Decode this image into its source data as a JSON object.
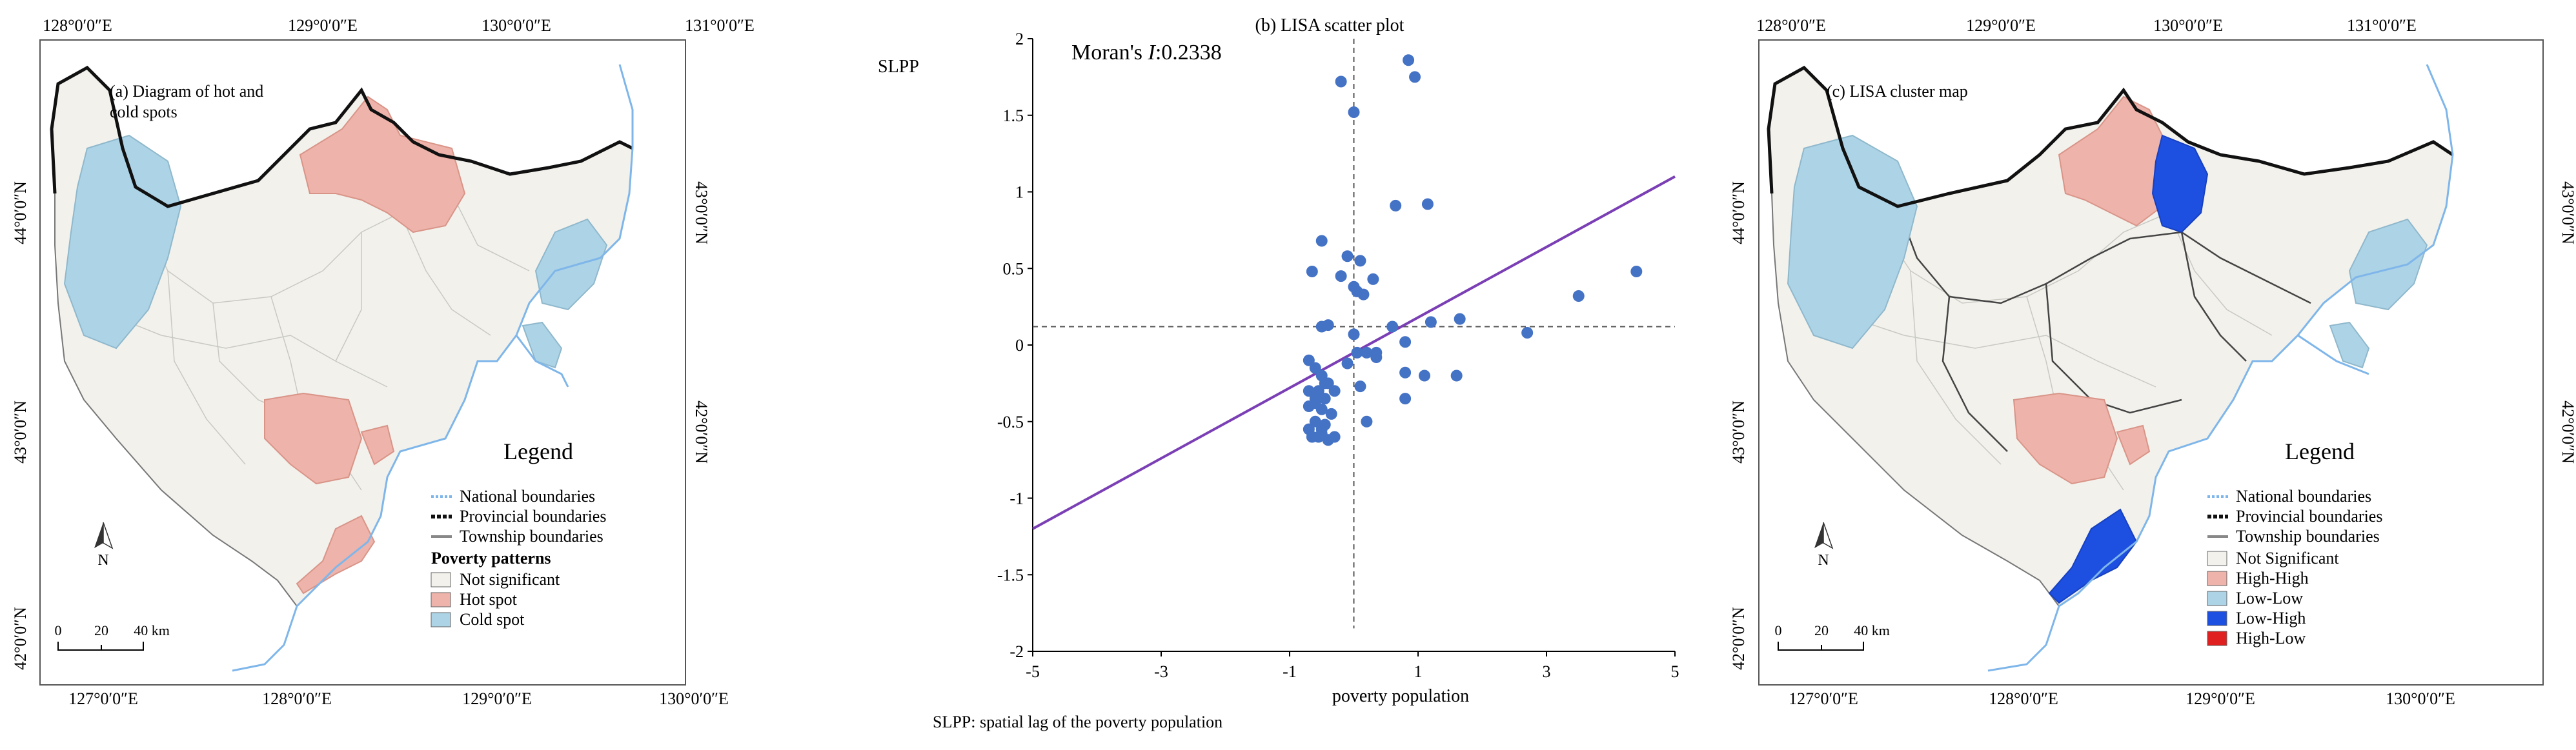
{
  "panel_a": {
    "title_line1": "(a) Diagram of hot and",
    "title_line2": "cold spots",
    "top_lon": [
      "128°0′0″E",
      "129°0′0″E",
      "130°0′0″E",
      "131°0′0″E"
    ],
    "bottom_lon": [
      "127°0′0″E",
      "128°0′0″E",
      "129°0′0″E",
      "130°0′0″E"
    ],
    "left_lat": [
      "44°0′0″N",
      "43°0′0″N",
      "42°0′0″N"
    ],
    "right_lat": [
      "43°0′0″N",
      "42°0′0″N"
    ],
    "legend_title": "Legend",
    "boundaries": [
      "National boundaries",
      "Provincial boundaries",
      "Township boundaries"
    ],
    "patterns_title": "Poverty patterns",
    "patterns": [
      {
        "label": "Not significant",
        "color": "#f2f1ec"
      },
      {
        "label": "Hot spot",
        "color": "#eeb3aa"
      },
      {
        "label": "Cold spot",
        "color": "#add3e6"
      }
    ],
    "north": "N",
    "scale": [
      "0",
      "20",
      "40 km"
    ]
  },
  "panel_b": {
    "caption": "SLPP: spatial lag of the poverty population"
  },
  "chart_data": {
    "type": "scatter",
    "title": "(b) LISA scatter plot",
    "annotation": "Moran's I:0.2338",
    "annotation_prefix": "Moran's",
    "annotation_italic": "I",
    "annotation_value": ":0.2338",
    "xlabel": "poverty population",
    "ylabel": "SLPP",
    "xlim": [
      -5,
      5
    ],
    "ylim": [
      -2,
      2
    ],
    "xticks": [
      -5,
      -3,
      -1,
      1,
      3,
      5
    ],
    "yticks": [
      -2,
      -1.5,
      -1,
      -0.5,
      0,
      0.5,
      1,
      1.5,
      2
    ],
    "xtick_labels": [
      "-5",
      "-3",
      "-1",
      "1",
      "3",
      "5"
    ],
    "ytick_labels": [
      "-2",
      "-1.5",
      "-1",
      "-0.5",
      "0",
      "0.5",
      "1",
      "1.5",
      "2"
    ],
    "vline_x": 0,
    "hline_y": 0.12,
    "fit_line": {
      "x": [
        -5,
        5
      ],
      "y": [
        -1.2,
        1.1
      ],
      "color": "#7b3fb5"
    },
    "point_color": "#4472c4",
    "points": {
      "x": [
        0.85,
        0.95,
        -0.2,
        0.0,
        1.15,
        0.65,
        -0.5,
        -0.65,
        -0.1,
        0.1,
        0.3,
        -0.2,
        0.0,
        0.05,
        0.15,
        3.5,
        4.4,
        1.65,
        1.2,
        0.6,
        0.8,
        2.7,
        -0.4,
        -0.5,
        -0.3,
        0.05,
        0.2,
        0.35,
        0.8,
        1.1,
        0.8,
        1.6,
        -0.7,
        -0.6,
        -0.5,
        -0.4,
        -0.7,
        -0.55,
        -0.45,
        -0.6,
        -0.7,
        -0.5,
        -0.35,
        -0.6,
        -0.45,
        -0.7,
        -0.5,
        -0.3,
        -0.55,
        -0.4,
        -0.65,
        -0.5,
        -0.4,
        -0.6,
        -0.45,
        0.1,
        0.2,
        0.35,
        -0.1,
        0.0
      ],
      "y": [
        1.86,
        1.75,
        1.72,
        1.52,
        0.92,
        0.91,
        0.68,
        0.48,
        0.58,
        0.55,
        0.43,
        0.45,
        0.38,
        0.35,
        0.33,
        0.32,
        0.48,
        0.17,
        0.15,
        0.12,
        0.02,
        0.08,
        0.13,
        0.12,
        -0.3,
        -0.05,
        -0.05,
        -0.05,
        -0.18,
        -0.2,
        -0.35,
        -0.2,
        -0.1,
        -0.15,
        -0.2,
        -0.25,
        -0.3,
        -0.3,
        -0.35,
        -0.38,
        -0.4,
        -0.42,
        -0.45,
        -0.5,
        -0.52,
        -0.55,
        -0.58,
        -0.6,
        -0.6,
        -0.62,
        -0.6,
        -0.55,
        -0.62,
        -0.35,
        -0.25,
        -0.27,
        -0.5,
        -0.08,
        -0.12,
        0.07
      ]
    }
  },
  "panel_c": {
    "title": "(c) LISA cluster map",
    "top_lon": [
      "128°0′0″E",
      "129°0′0″E",
      "130°0′0″E",
      "131°0′0″E"
    ],
    "bottom_lon": [
      "127°0′0″E",
      "128°0′0″E",
      "129°0′0″E",
      "130°0′0″E"
    ],
    "left_lat": [
      "44°0′0″N",
      "43°0′0″N",
      "42°0′0″N"
    ],
    "right_lat": [
      "43°0′0″N",
      "42°0′0″N"
    ],
    "legend_title": "Legend",
    "boundaries": [
      "National boundaries",
      "Provincial boundaries",
      "Township boundaries"
    ],
    "clusters": [
      {
        "label": "Not Significant",
        "color": "#f2f1ec"
      },
      {
        "label": "High-High",
        "color": "#eeb3aa"
      },
      {
        "label": "Low-Low",
        "color": "#add3e6"
      },
      {
        "label": "Low-High",
        "color": "#1d4fe0"
      },
      {
        "label": "High-Low",
        "color": "#e02020"
      }
    ],
    "north": "N",
    "scale": [
      "0",
      "20",
      "40 km"
    ]
  }
}
